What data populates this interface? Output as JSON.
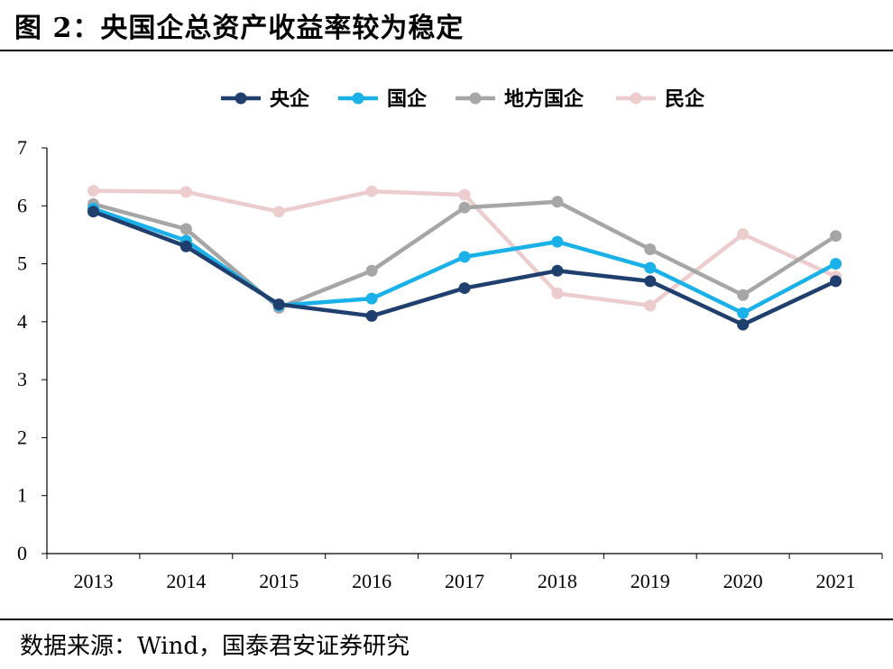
{
  "title": "图 2：央国企总资产收益率较为稳定",
  "source": "数据来源：Wind，国泰君安证券研究",
  "chart_data": {
    "type": "line",
    "categories": [
      "2013",
      "2014",
      "2015",
      "2016",
      "2017",
      "2018",
      "2019",
      "2020",
      "2021"
    ],
    "ylim": [
      0,
      7
    ],
    "yticks": [
      0,
      1,
      2,
      3,
      4,
      5,
      6,
      7
    ],
    "grid": false,
    "legend_position": "top-center",
    "series": [
      {
        "name": "央企",
        "color": "#1f3f6e",
        "values": [
          5.9,
          5.3,
          4.3,
          4.1,
          4.58,
          4.88,
          4.7,
          3.95,
          4.7
        ]
      },
      {
        "name": "国企",
        "color": "#1ab0e8",
        "values": [
          5.95,
          5.4,
          4.28,
          4.4,
          5.12,
          5.38,
          4.93,
          4.15,
          5.0
        ]
      },
      {
        "name": "地方国企",
        "color": "#a6a6a6",
        "values": [
          6.03,
          5.6,
          4.24,
          4.88,
          5.97,
          6.07,
          5.25,
          4.46,
          5.48
        ]
      },
      {
        "name": "民企",
        "color": "#eccccc",
        "values": [
          6.26,
          6.24,
          5.9,
          6.25,
          6.19,
          4.49,
          4.28,
          5.51,
          4.78
        ]
      }
    ]
  }
}
